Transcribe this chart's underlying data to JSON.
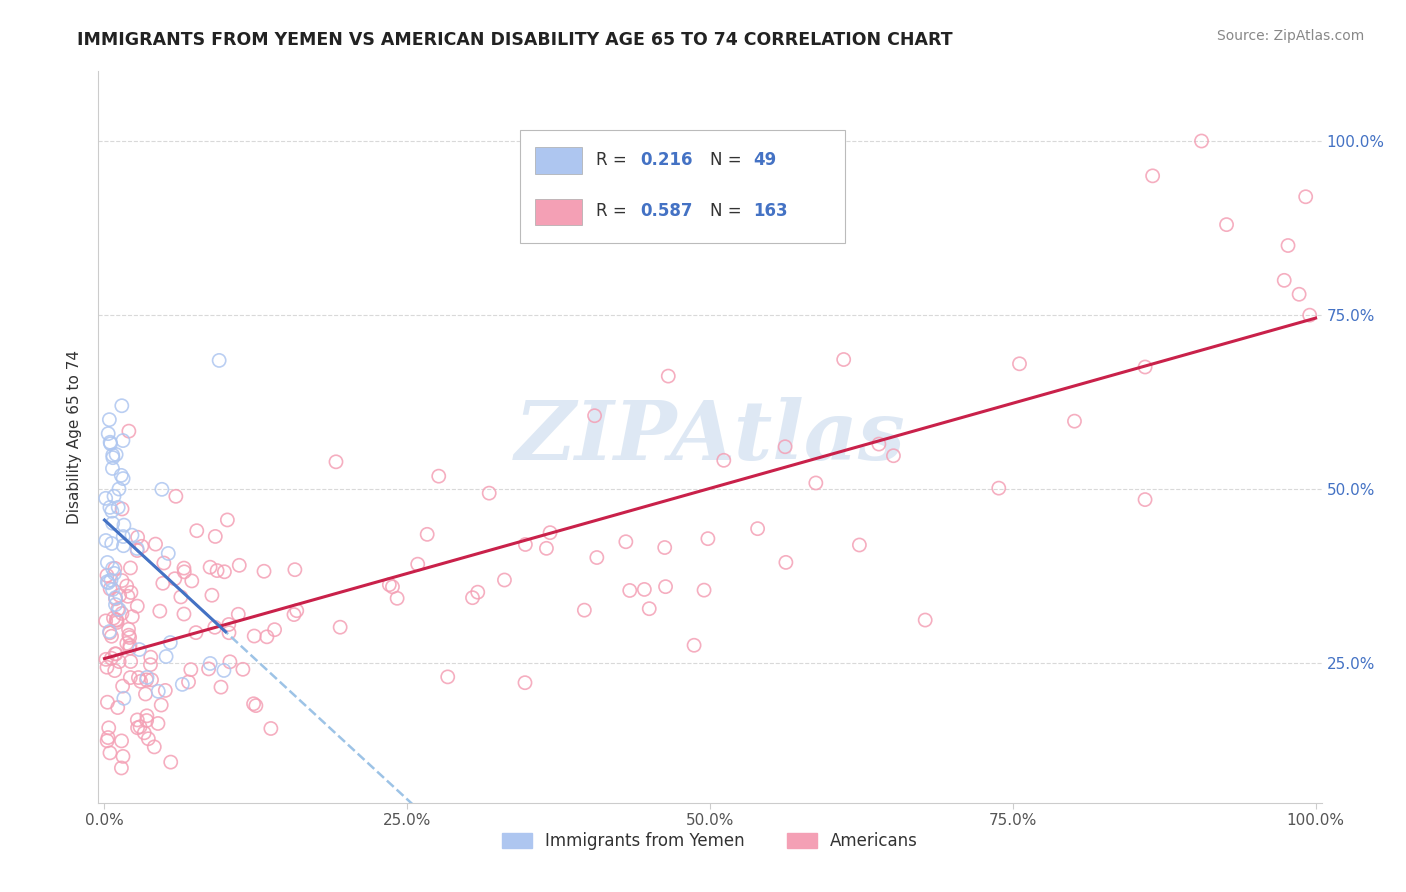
{
  "title": "IMMIGRANTS FROM YEMEN VS AMERICAN DISABILITY AGE 65 TO 74 CORRELATION CHART",
  "source": "Source: ZipAtlas.com",
  "ylabel": "Disability Age 65 to 74",
  "y_tick_labels": [
    "25.0%",
    "50.0%",
    "75.0%",
    "100.0%"
  ],
  "y_tick_positions": [
    0.25,
    0.5,
    0.75,
    1.0
  ],
  "xlim": [
    -0.005,
    1.005
  ],
  "ylim": [
    0.05,
    1.1
  ],
  "legend_entries": [
    {
      "label": "Immigrants from Yemen",
      "color": "#aec6f0"
    },
    {
      "label": "Americans",
      "color": "#f4a0b5"
    }
  ],
  "r_blue": 0.216,
  "n_blue": 49,
  "r_pink": 0.587,
  "n_pink": 163,
  "blue_line_color": "#4472c4",
  "blue_dash_color": "#9dc3e6",
  "pink_line_color": "#c9214a",
  "blue_dot_color": "#aec6f0",
  "pink_dot_color": "#f4a0b5",
  "background_color": "#ffffff",
  "grid_color": "#d9d9d9",
  "watermark_color": "#d0dff0",
  "watermark_text": "ZIPAtlas"
}
